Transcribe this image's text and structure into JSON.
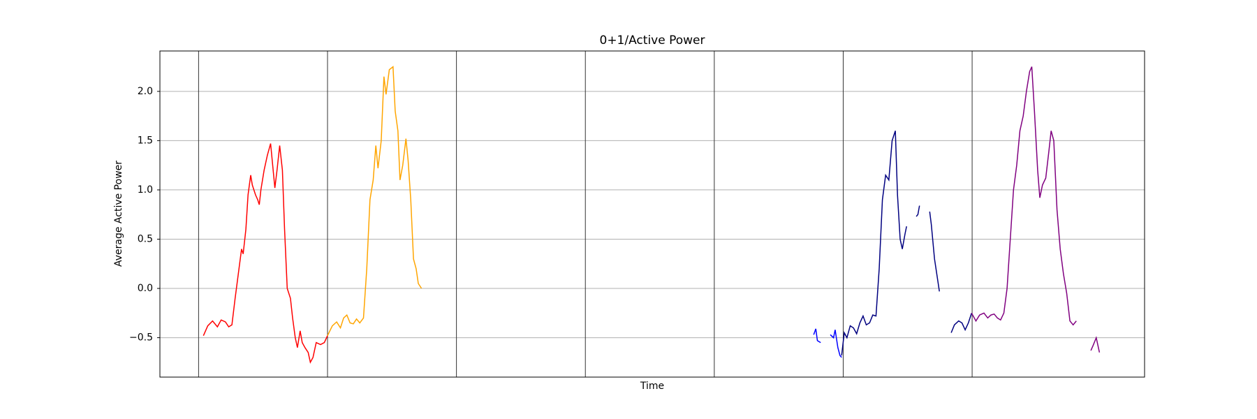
{
  "chart_data": {
    "type": "line",
    "title": "0+1/Active Power",
    "xlabel": "Time",
    "ylabel": "Average Active Power",
    "xlim": [
      -7.2,
      176.1
    ],
    "ylim": [
      -0.9,
      2.41
    ],
    "yticks": [
      {
        "value": -0.5,
        "label": "−0.5"
      },
      {
        "value": 0,
        "label": "0.0"
      },
      {
        "value": 0.5,
        "label": "0.5"
      },
      {
        "value": 1,
        "label": "1.0"
      },
      {
        "value": 1.5,
        "label": "1.5"
      },
      {
        "value": 2,
        "label": "2.0"
      }
    ],
    "vlines": [
      0,
      24,
      48,
      72,
      96,
      120,
      144
    ],
    "grid": true,
    "series": [
      {
        "color": "#ff0000",
        "x": [
          0.9,
          1.7,
          2.6,
          3.5,
          4.2,
          5.0,
          5.6,
          6.2,
          6.8,
          7.4,
          8.0,
          8.3,
          8.8,
          9.2,
          9.7,
          10.0,
          10.6,
          11.0,
          11.3,
          11.6,
          12.2,
          12.8,
          13.4,
          13.7,
          14.2,
          14.6,
          15.1,
          15.6,
          16.0,
          16.5,
          17.1,
          17.5,
          18.0,
          18.4,
          18.9,
          19.3,
          19.8,
          20.4,
          20.8,
          21.3,
          21.9,
          22.7,
          23.4,
          24.0
        ],
        "values": [
          -0.48,
          -0.38,
          -0.33,
          -0.39,
          -0.32,
          -0.34,
          -0.39,
          -0.37,
          -0.1,
          0.15,
          0.4,
          0.35,
          0.6,
          0.95,
          1.15,
          1.05,
          0.95,
          0.9,
          0.85,
          1.0,
          1.2,
          1.35,
          1.47,
          1.3,
          1.02,
          1.2,
          1.45,
          1.2,
          0.6,
          0.0,
          -0.1,
          -0.3,
          -0.5,
          -0.6,
          -0.43,
          -0.55,
          -0.6,
          -0.65,
          -0.75,
          -0.7,
          -0.55,
          -0.57,
          -0.55,
          -0.48
        ]
      },
      {
        "color": "#ffa500",
        "x": [
          24.0,
          24.9,
          25.7,
          26.4,
          27.0,
          27.6,
          28.2,
          28.8,
          29.4,
          30.0,
          30.7,
          31.3,
          31.9,
          32.5,
          33.0,
          33.4,
          34.0,
          34.5,
          34.9,
          35.5,
          36.2,
          36.6,
          37.1,
          37.5,
          38.0,
          38.6,
          39.0,
          39.5,
          40.0,
          40.5,
          40.9,
          41.5
        ],
        "values": [
          -0.48,
          -0.38,
          -0.34,
          -0.4,
          -0.3,
          -0.27,
          -0.35,
          -0.36,
          -0.31,
          -0.35,
          -0.3,
          0.2,
          0.9,
          1.1,
          1.45,
          1.22,
          1.5,
          2.15,
          1.97,
          2.22,
          2.25,
          1.8,
          1.6,
          1.1,
          1.25,
          1.52,
          1.3,
          0.9,
          0.3,
          0.2,
          0.05,
          0.0
        ]
      },
      {
        "color": "#0000ff",
        "x": [
          114.5,
          114.9,
          115.2,
          115.8,
          null,
          117.6,
          118.2,
          118.5,
          119.0,
          119.4,
          119.7
        ],
        "values": [
          -0.47,
          -0.41,
          -0.53,
          -0.55,
          null,
          -0.47,
          -0.5,
          -0.42,
          -0.6,
          -0.68,
          -0.7
        ]
      },
      {
        "color": "#000080",
        "x": [
          119.7,
          120.2,
          120.7,
          121.3,
          121.9,
          122.5,
          123.1,
          123.7,
          124.3,
          124.9,
          125.5,
          126.1,
          126.7,
          127.3,
          127.9,
          128.5,
          129.1,
          129.7,
          130.1,
          130.6,
          131.0,
          131.5,
          131.8,
          null,
          133.6,
          133.9,
          134.2,
          null,
          136.1,
          136.4,
          137.0,
          137.9,
          null,
          140.1,
          140.7,
          141.5,
          142.1,
          142.7,
          143.3,
          143.9
        ],
        "values": [
          -0.68,
          -0.45,
          -0.5,
          -0.38,
          -0.4,
          -0.46,
          -0.35,
          -0.28,
          -0.37,
          -0.35,
          -0.27,
          -0.28,
          0.2,
          0.9,
          1.15,
          1.1,
          1.5,
          1.6,
          0.95,
          0.5,
          0.4,
          0.55,
          0.63,
          null,
          0.73,
          0.75,
          0.84,
          null,
          0.78,
          0.65,
          0.3,
          -0.03,
          null,
          -0.45,
          -0.37,
          -0.33,
          -0.35,
          -0.42,
          -0.35,
          -0.25
        ]
      },
      {
        "color": "#800080",
        "x": [
          143.9,
          144.7,
          145.4,
          146.2,
          146.9,
          147.5,
          148.1,
          148.7,
          149.3,
          149.9,
          150.5,
          151.1,
          151.7,
          152.3,
          152.9,
          153.5,
          154.1,
          154.7,
          155.1,
          155.6,
          156.2,
          156.6,
          157.1,
          157.7,
          158.3,
          158.7,
          159.2,
          159.8,
          160.4,
          161.0,
          161.6,
          162.2,
          162.8,
          163.4,
          null,
          166.1,
          166.5,
          167.1,
          167.7
        ],
        "values": [
          -0.25,
          -0.33,
          -0.27,
          -0.25,
          -0.3,
          -0.27,
          -0.26,
          -0.3,
          -0.32,
          -0.25,
          0.0,
          0.5,
          1.0,
          1.25,
          1.6,
          1.75,
          2.0,
          2.2,
          2.25,
          1.8,
          1.2,
          0.92,
          1.05,
          1.12,
          1.4,
          1.6,
          1.5,
          0.8,
          0.4,
          0.15,
          -0.05,
          -0.33,
          -0.37,
          -0.33,
          null,
          -0.63,
          -0.58,
          -0.5,
          -0.65
        ]
      }
    ]
  }
}
